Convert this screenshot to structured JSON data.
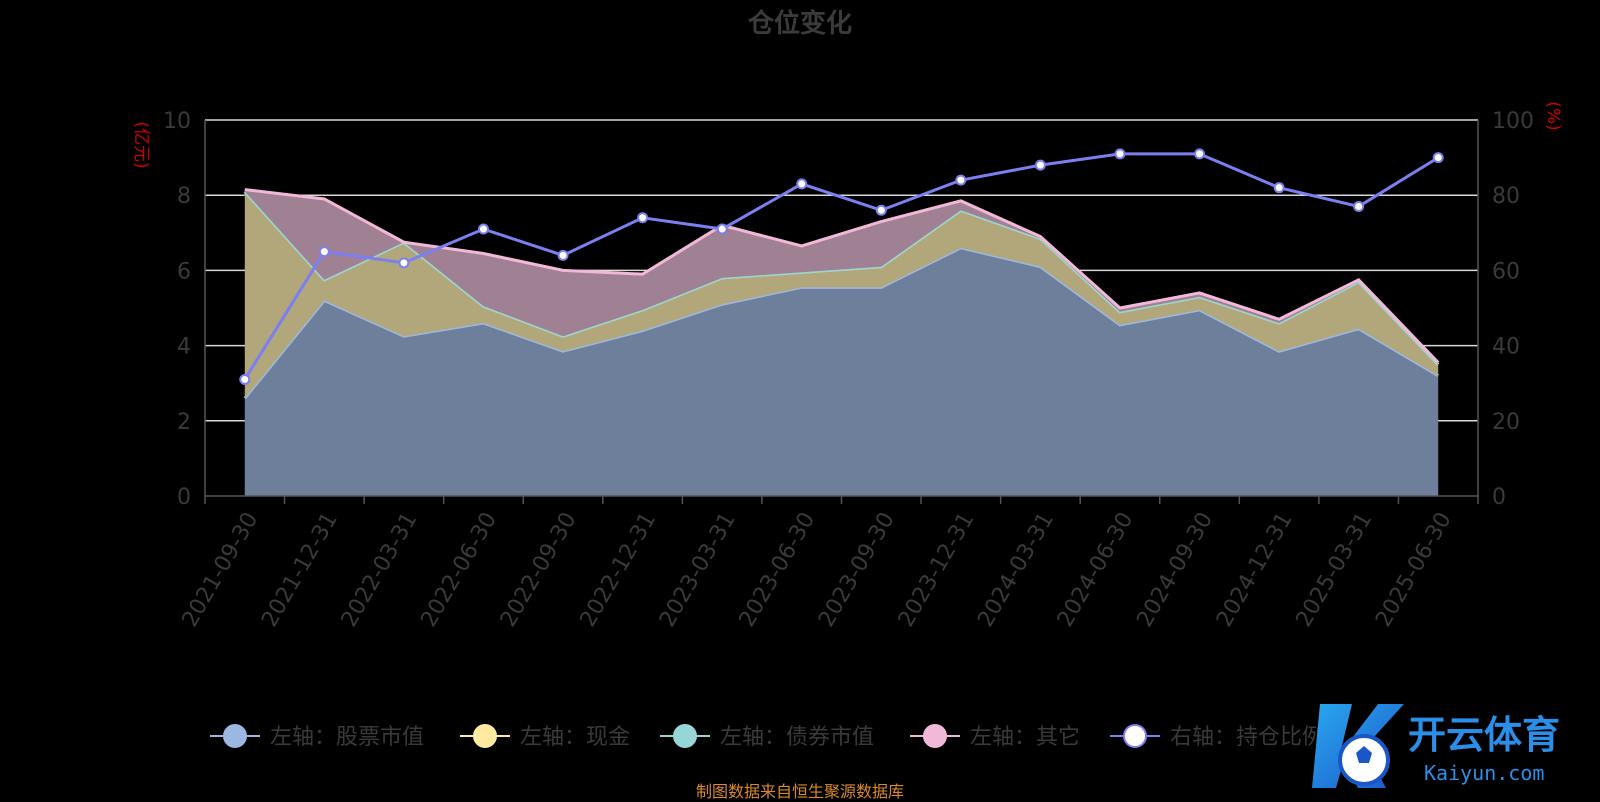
{
  "chart_data": {
    "type": "area",
    "title": "仓位变化",
    "left_axis_unit": "(亿元)",
    "right_axis_unit": "(%)",
    "left_ylim": [
      0,
      10
    ],
    "right_ylim": [
      0,
      100
    ],
    "left_ticks": [
      "0",
      "2",
      "4",
      "6",
      "8",
      "10"
    ],
    "right_ticks": [
      "0",
      "20",
      "40",
      "60",
      "80",
      "100"
    ],
    "grid": true,
    "legend_placement": "bottom",
    "categories": [
      "2021-09-30",
      "2021-12-31",
      "2022-03-31",
      "2022-06-30",
      "2022-09-30",
      "2022-12-31",
      "2023-03-31",
      "2023-06-30",
      "2023-09-30",
      "2023-12-31",
      "2024-03-31",
      "2024-06-30",
      "2024-09-30",
      "2024-12-31",
      "2025-03-31",
      "2025-06-30"
    ],
    "series": [
      {
        "name": "左轴：股票市值",
        "axis": "left",
        "color": "#9db8e0",
        "fill": "#6e7f9c",
        "values": [
          2.6,
          5.2,
          4.25,
          4.6,
          3.85,
          4.4,
          5.1,
          5.55,
          5.55,
          6.6,
          6.1,
          4.55,
          4.95,
          3.85,
          4.45,
          3.2
        ]
      },
      {
        "name": "左轴：现金",
        "axis": "left",
        "color": "#ffeaa0",
        "fill": "#b2a77a",
        "values": [
          5.5,
          0.55,
          2.5,
          0.45,
          0.4,
          0.55,
          0.7,
          0.4,
          0.55,
          1.0,
          0.75,
          0.35,
          0.35,
          0.75,
          1.25,
          0.3
        ]
      },
      {
        "name": "左轴：债券市值",
        "axis": "left",
        "color": "#96d6d6",
        "fill": "#7aa8a8",
        "values": [
          0,
          0,
          0,
          0,
          0,
          0,
          0,
          0,
          0,
          0,
          0,
          0,
          0,
          0,
          0,
          0
        ]
      },
      {
        "name": "左轴：其它",
        "axis": "left",
        "color": "#f2b8d8",
        "fill": "#9f8193",
        "values": [
          0.05,
          2.15,
          0,
          1.4,
          1.75,
          0.95,
          1.4,
          0.7,
          1.2,
          0.25,
          0.05,
          0.1,
          0.1,
          0.1,
          0.05,
          0.05
        ]
      },
      {
        "name": "右轴：持仓比例",
        "axis": "right",
        "color": "#7b7ff0",
        "values": [
          31,
          65,
          62,
          71,
          64,
          74,
          71,
          83,
          76,
          84,
          88,
          91,
          91,
          82,
          77,
          90
        ]
      }
    ]
  },
  "footer": "制图数据来自恒生聚源数据库",
  "watermark": {
    "main": "开云体育",
    "sub": "Kaiyun.com"
  }
}
